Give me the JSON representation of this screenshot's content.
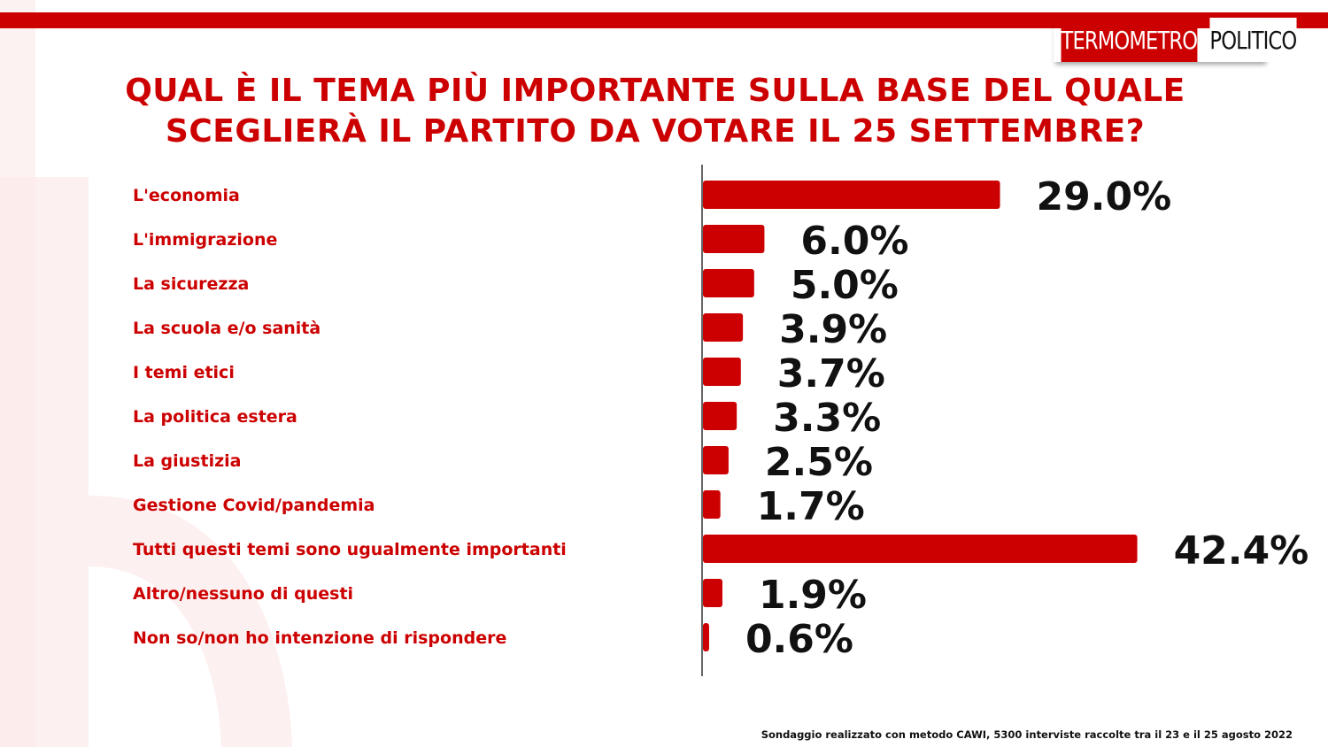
{
  "brand": {
    "logo_left": "TERMOMETRO",
    "logo_right": "POLITICO",
    "accent": "#cc0000"
  },
  "title_lines": [
    "QUAL È IL TEMA PIÙ IMPORTANTE SULLA BASE DEL QUALE",
    "SCEGLIERÀ IL PARTITO DA VOTARE IL 25 SETTEMBRE?"
  ],
  "footnote": "Sondaggio realizzato con metodo CAWI, 5300 interviste raccolte tra il 23 e il 25 agosto 2022",
  "chart_data": {
    "type": "bar",
    "orientation": "horizontal",
    "categories": [
      "L'economia",
      "L'immigrazione",
      "La sicurezza",
      "La scuola e/o sanità",
      "I temi etici",
      "La politica estera",
      "La giustizia",
      "Gestione Covid/pandemia",
      "Tutti questi temi sono ugualmente importanti",
      "Altro/nessuno di questi",
      "Non so/non ho intenzione di rispondere"
    ],
    "values": [
      29.0,
      6.0,
      5.0,
      3.9,
      3.7,
      3.3,
      2.5,
      1.7,
      42.4,
      1.9,
      0.6
    ],
    "value_labels": [
      "29.0%",
      "6.0%",
      "5.0%",
      "3.9%",
      "3.7%",
      "3.3%",
      "2.5%",
      "1.7%",
      "42.4%",
      "1.9%",
      "0.6%"
    ],
    "bar_color": "#cc0000",
    "grid": false,
    "legend": "none"
  }
}
